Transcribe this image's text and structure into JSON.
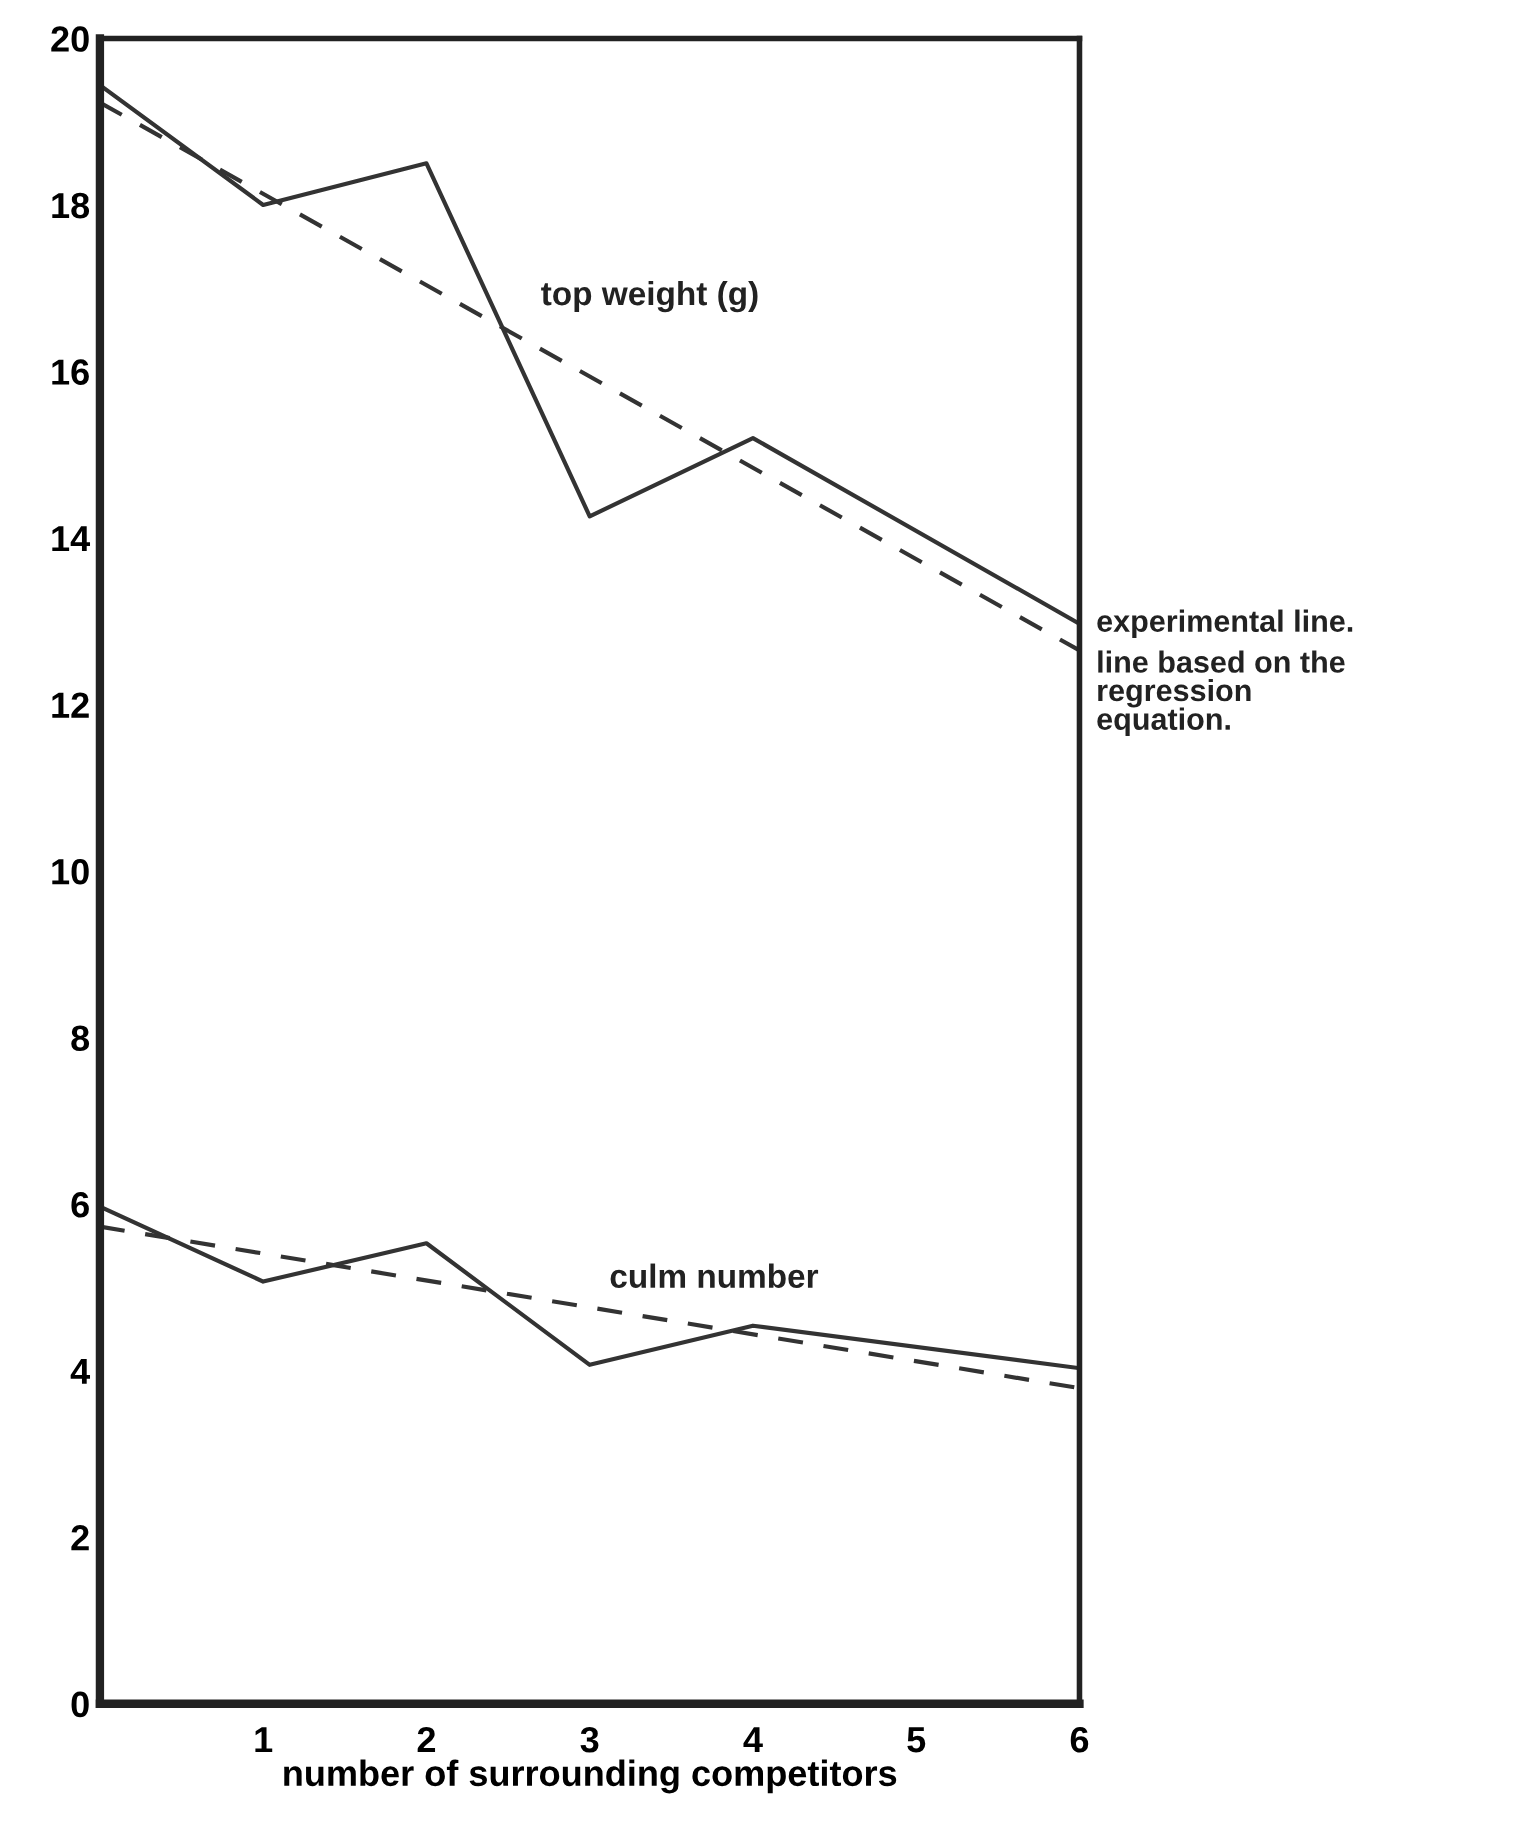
{
  "chart_data": {
    "type": "line",
    "xlabel": "number of surrounding competitors",
    "xlim": [
      0,
      6
    ],
    "xticks": [
      1,
      2,
      3,
      4,
      5,
      6
    ],
    "ylim": [
      0,
      20
    ],
    "yticks": [
      0,
      2,
      4,
      6,
      8,
      10,
      12,
      14,
      16,
      18,
      20
    ],
    "grid": false,
    "marker": "none",
    "series": [
      {
        "name": "experimental line.",
        "color": "#333333",
        "line_style": "solid",
        "x": [
          0,
          1,
          2,
          3,
          4,
          6
        ],
        "values": [
          19.44,
          18.0,
          18.5,
          14.26,
          15.2,
          12.97
        ]
      },
      {
        "name": "line based on the regression equation.",
        "color": "#333333",
        "line_style": "dashed",
        "x": [
          0,
          6
        ],
        "values": [
          19.23,
          12.65
        ]
      },
      {
        "color": "#333333",
        "line_style": "solid",
        "x": [
          0,
          1,
          2,
          3,
          4,
          6
        ],
        "values": [
          5.97,
          5.07,
          5.53,
          4.07,
          4.54,
          4.03
        ]
      },
      {
        "color": "#333333",
        "line_style": "dashed",
        "x": [
          0,
          6
        ],
        "values": [
          5.73,
          3.79
        ]
      }
    ],
    "annotations": [
      "top weight (g)",
      "culm number"
    ]
  }
}
